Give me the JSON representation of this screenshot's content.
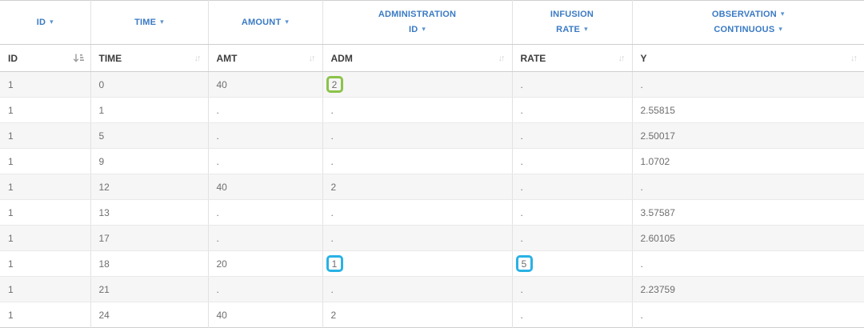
{
  "colors": {
    "accent-blue": "#3a7ac4",
    "hl-green": "#8bc34a",
    "hl-blue": "#29b2e5"
  },
  "table": {
    "group_headers": [
      {
        "id": "id",
        "lines": [
          {
            "text": "ID",
            "caret": true
          }
        ]
      },
      {
        "id": "time",
        "lines": [
          {
            "text": "TIME",
            "caret": true
          }
        ]
      },
      {
        "id": "amount",
        "lines": [
          {
            "text": "AMOUNT",
            "caret": true
          }
        ]
      },
      {
        "id": "administration-id",
        "lines": [
          {
            "text": "ADMINISTRATION",
            "caret": false
          },
          {
            "text": "ID",
            "caret": true
          }
        ]
      },
      {
        "id": "infusion-rate",
        "lines": [
          {
            "text": "INFUSION",
            "caret": false
          },
          {
            "text": "RATE",
            "caret": true
          }
        ]
      },
      {
        "id": "observation-continuous",
        "lines": [
          {
            "text": "OBSERVATION",
            "caret": true
          },
          {
            "text": "CONTINUOUS",
            "caret": true
          }
        ]
      }
    ],
    "column_headers": [
      {
        "label": "ID",
        "sort_state": "sorted-asc"
      },
      {
        "label": "TIME",
        "sort_state": "unsorted"
      },
      {
        "label": "AMT",
        "sort_state": "unsorted"
      },
      {
        "label": "ADM",
        "sort_state": "unsorted"
      },
      {
        "label": "RATE",
        "sort_state": "unsorted"
      },
      {
        "label": "Y",
        "sort_state": "unsorted"
      }
    ],
    "sort_glyph": "↓↑",
    "caret_glyph": "▾",
    "rows": [
      {
        "id": "1",
        "time": "0",
        "amt": "40",
        "adm": "2",
        "rate": ".",
        "y": ".",
        "adm_highlight": "green"
      },
      {
        "id": "1",
        "time": "1",
        "amt": ".",
        "adm": ".",
        "rate": ".",
        "y": "2.55815"
      },
      {
        "id": "1",
        "time": "5",
        "amt": ".",
        "adm": ".",
        "rate": ".",
        "y": "2.50017"
      },
      {
        "id": "1",
        "time": "9",
        "amt": ".",
        "adm": ".",
        "rate": ".",
        "y": "1.0702"
      },
      {
        "id": "1",
        "time": "12",
        "amt": "40",
        "adm": "2",
        "rate": ".",
        "y": "."
      },
      {
        "id": "1",
        "time": "13",
        "amt": ".",
        "adm": ".",
        "rate": ".",
        "y": "3.57587"
      },
      {
        "id": "1",
        "time": "17",
        "amt": ".",
        "adm": ".",
        "rate": ".",
        "y": "2.60105"
      },
      {
        "id": "1",
        "time": "18",
        "amt": "20",
        "adm": "1",
        "rate": "5",
        "y": ".",
        "adm_highlight": "blue",
        "rate_highlight": "blue"
      },
      {
        "id": "1",
        "time": "21",
        "amt": ".",
        "adm": ".",
        "rate": ".",
        "y": "2.23759"
      },
      {
        "id": "1",
        "time": "24",
        "amt": "40",
        "adm": "2",
        "rate": ".",
        "y": "."
      }
    ]
  }
}
